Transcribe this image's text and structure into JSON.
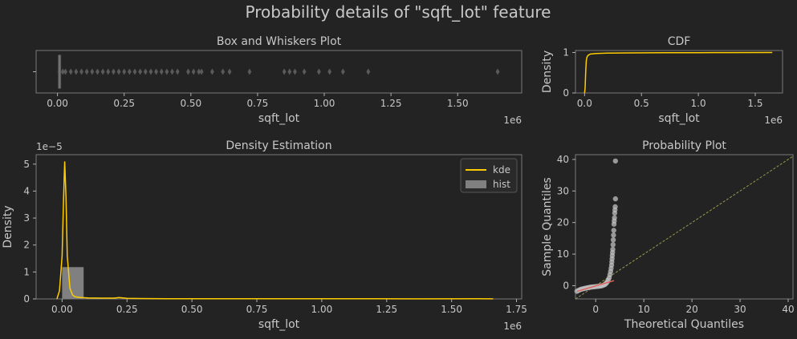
{
  "suptitle": "Probability details of \"sqft_lot\" feature",
  "colors": {
    "background": "#232323",
    "kde": "#ffcc00",
    "hist": "#808080",
    "boxplot": "#5a5a5a",
    "qq_points": "#c0c0c0",
    "qq_fit": "#e06060",
    "ref_line": "#9a9a50"
  },
  "chart_data": [
    {
      "id": "boxplot",
      "type": "box",
      "title": "Box and Whiskers Plot",
      "xlabel": "sqft_lot",
      "ylabel": "",
      "offset_text": "1e6",
      "xlim": [
        -0.08,
        1.74
      ],
      "xticks": [
        0.0,
        0.25,
        0.5,
        0.75,
        1.0,
        1.25,
        1.5
      ],
      "xtick_labels": [
        "0.00",
        "0.25",
        "0.50",
        "0.75",
        "1.00",
        "1.25",
        "1.50"
      ],
      "box": {
        "q1": 0.005,
        "median": 0.0076,
        "q3": 0.0107,
        "whisker_low": 0.00052,
        "whisker_high": 0.019
      },
      "outliers": [
        0.02,
        0.03,
        0.05,
        0.07,
        0.09,
        0.11,
        0.13,
        0.15,
        0.17,
        0.19,
        0.21,
        0.23,
        0.25,
        0.27,
        0.29,
        0.31,
        0.33,
        0.35,
        0.37,
        0.39,
        0.41,
        0.43,
        0.45,
        0.49,
        0.51,
        0.53,
        0.54,
        0.58,
        0.62,
        0.645,
        0.72,
        0.85,
        0.87,
        0.89,
        0.925,
        0.98,
        1.02,
        1.07,
        1.165,
        1.65
      ]
    },
    {
      "id": "cdf",
      "type": "line",
      "title": "CDF",
      "xlabel": "sqft_lot",
      "ylabel": "Density",
      "offset_text": "1e6",
      "xlim": [
        -0.08,
        1.74
      ],
      "ylim": [
        0,
        1.05
      ],
      "xticks": [
        0.0,
        0.5,
        1.0,
        1.5
      ],
      "xtick_labels": [
        "0.0",
        "0.5",
        "1.0",
        "1.5"
      ],
      "yticks": [
        0,
        1
      ],
      "ytick_labels": [
        "0",
        "1"
      ],
      "x": [
        0.0,
        0.005,
        0.01,
        0.015,
        0.02,
        0.03,
        0.05,
        0.1,
        0.2,
        0.4,
        0.7,
        1.0,
        1.3,
        1.65
      ],
      "y": [
        0.0,
        0.12,
        0.55,
        0.8,
        0.88,
        0.93,
        0.96,
        0.975,
        0.985,
        0.99,
        0.995,
        0.997,
        0.999,
        1.0
      ]
    },
    {
      "id": "density",
      "type": "area",
      "title": "Density Estimation",
      "xlabel": "sqft_lot",
      "ylabel": "Density",
      "offset_text": "1e6",
      "y_offset_text": "1e−5",
      "xlim": [
        -0.1,
        1.77
      ],
      "ylim": [
        0,
        5.35
      ],
      "xticks": [
        0.0,
        0.25,
        0.5,
        0.75,
        1.0,
        1.25,
        1.5,
        1.75
      ],
      "xtick_labels": [
        "0.00",
        "0.25",
        "0.50",
        "0.75",
        "1.00",
        "1.25",
        "1.50",
        "1.75"
      ],
      "yticks": [
        0,
        1,
        2,
        3,
        4,
        5
      ],
      "ytick_labels": [
        "0",
        "1",
        "2",
        "3",
        "4",
        "5"
      ],
      "legend": {
        "placement": "upper-right",
        "entries": [
          {
            "label": "kde",
            "kind": "line"
          },
          {
            "label": "hist",
            "kind": "patch"
          }
        ]
      },
      "hist": {
        "edges": [
          0.0,
          0.083,
          0.166,
          0.249,
          0.332,
          0.415,
          0.498,
          0.581,
          0.664,
          0.747,
          0.83,
          0.913,
          0.996,
          1.079,
          1.162,
          1.245,
          1.328,
          1.411,
          1.494,
          1.577,
          1.66
        ],
        "values": [
          1.18,
          0.013,
          0.004,
          0.002,
          0.001,
          0.001,
          0.001,
          0.0005,
          0.0005,
          0.0003,
          0.0003,
          0.0003,
          0.0002,
          0.0002,
          0.0002,
          0.0001,
          0.0001,
          0.0001,
          0.0001,
          0.0001
        ]
      },
      "kde": {
        "x": [
          -0.02,
          -0.01,
          0.0,
          0.005,
          0.01,
          0.015,
          0.02,
          0.03,
          0.04,
          0.05,
          0.07,
          0.1,
          0.15,
          0.2,
          0.22,
          0.25,
          0.3,
          0.4,
          0.6,
          0.8,
          1.0,
          1.2,
          1.4,
          1.6,
          1.66
        ],
        "y": [
          0.0,
          0.3,
          1.6,
          3.5,
          5.1,
          3.8,
          1.6,
          0.4,
          0.15,
          0.08,
          0.05,
          0.04,
          0.03,
          0.03,
          0.05,
          0.02,
          0.015,
          0.01,
          0.01,
          0.008,
          0.006,
          0.005,
          0.004,
          0.005,
          0.003
        ]
      }
    },
    {
      "id": "probplot",
      "type": "scatter",
      "title": "Probability Plot",
      "xlabel": "Theoretical Quantiles",
      "ylabel": "Sample Quantiles",
      "xlim": [
        -4.2,
        41
      ],
      "ylim": [
        -4.2,
        41.5
      ],
      "xticks": [
        0,
        10,
        20,
        30,
        40
      ],
      "xtick_labels": [
        "0",
        "10",
        "20",
        "30",
        "40"
      ],
      "yticks": [
        0,
        10,
        20,
        30,
        40
      ],
      "ytick_labels": [
        "0",
        "10",
        "20",
        "30",
        "40"
      ],
      "points": [
        [
          -3.9,
          -1.8
        ],
        [
          -3.6,
          -1.5
        ],
        [
          -3.3,
          -1.3
        ],
        [
          -3.0,
          -1.1
        ],
        [
          -2.7,
          -1.0
        ],
        [
          -2.4,
          -0.9
        ],
        [
          -2.1,
          -0.8
        ],
        [
          -1.8,
          -0.7
        ],
        [
          -1.5,
          -0.6
        ],
        [
          -1.2,
          -0.5
        ],
        [
          -0.9,
          -0.45
        ],
        [
          -0.6,
          -0.4
        ],
        [
          -0.3,
          -0.35
        ],
        [
          0.0,
          -0.3
        ],
        [
          0.3,
          -0.25
        ],
        [
          0.6,
          -0.2
        ],
        [
          0.9,
          -0.15
        ],
        [
          1.2,
          -0.05
        ],
        [
          1.5,
          0.1
        ],
        [
          1.8,
          0.3
        ],
        [
          2.0,
          0.5
        ],
        [
          2.2,
          0.8
        ],
        [
          2.4,
          1.2
        ],
        [
          2.6,
          1.8
        ],
        [
          2.8,
          2.5
        ],
        [
          2.95,
          3.5
        ],
        [
          3.1,
          4.5
        ],
        [
          3.2,
          5.5
        ],
        [
          3.3,
          6.5
        ],
        [
          3.35,
          7.5
        ],
        [
          3.4,
          8.5
        ],
        [
          3.45,
          9.5
        ],
        [
          3.5,
          10.5
        ],
        [
          3.55,
          11.5
        ],
        [
          3.6,
          13.0
        ],
        [
          3.65,
          14.5
        ],
        [
          3.7,
          16.0
        ],
        [
          3.75,
          17.5
        ],
        [
          3.8,
          19.5
        ],
        [
          3.85,
          20.5
        ],
        [
          3.9,
          21.5
        ],
        [
          3.95,
          23.0
        ],
        [
          4.0,
          24.0
        ],
        [
          4.05,
          25.0
        ],
        [
          4.1,
          27.5
        ],
        [
          4.1,
          39.5
        ]
      ],
      "fit_line": [
        [
          -3.9,
          -1.8
        ],
        [
          3.8,
          1.6
        ]
      ],
      "reference_line": [
        [
          -4.2,
          -4.2
        ],
        [
          41,
          41
        ]
      ]
    }
  ]
}
